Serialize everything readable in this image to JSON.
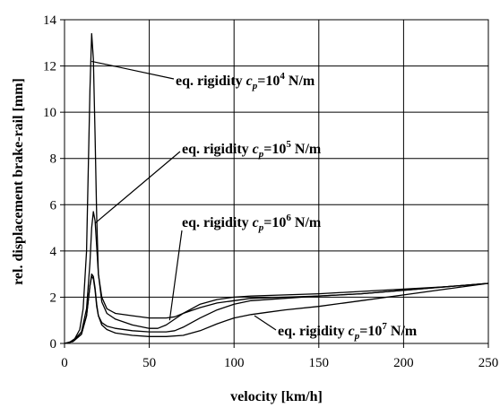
{
  "chart_data": {
    "type": "line",
    "title": "",
    "xlabel": "velocity [km/h]",
    "ylabel": "rel. displacement brake-rail [mm]",
    "xlim": [
      0,
      250
    ],
    "ylim": [
      0,
      14
    ],
    "xticks": [
      "0",
      "50",
      "100",
      "150",
      "200",
      "250"
    ],
    "yticks": [
      "0",
      "2",
      "4",
      "6",
      "8",
      "10",
      "12",
      "14"
    ],
    "grid": true,
    "legend": "none",
    "line_color": "#000000",
    "series": [
      {
        "name": "eq. rigidity cp=10^4 N/m",
        "x": [
          0,
          3,
          6,
          9,
          11,
          13,
          14,
          15,
          16,
          17,
          18,
          19,
          20,
          22,
          25,
          30,
          40,
          50,
          55,
          60,
          65,
          70,
          80,
          90,
          100,
          110,
          130,
          150,
          175,
          200,
          225,
          250
        ],
        "y": [
          0,
          0.05,
          0.2,
          0.6,
          1.5,
          4,
          7.5,
          11,
          13.4,
          12.3,
          9,
          5.5,
          3,
          1.8,
          1.3,
          1.05,
          0.8,
          0.65,
          0.65,
          0.8,
          1.05,
          1.3,
          1.7,
          1.9,
          2.0,
          2.05,
          2.1,
          2.15,
          2.25,
          2.35,
          2.45,
          2.6
        ]
      },
      {
        "name": "eq. rigidity cp=10^5 N/m",
        "x": [
          0,
          5,
          10,
          13,
          15,
          16,
          17,
          18,
          19,
          20,
          22,
          25,
          30,
          40,
          50,
          60,
          65,
          70,
          80,
          90,
          100,
          110,
          130,
          150,
          175,
          200,
          225,
          250
        ],
        "y": [
          0,
          0.1,
          0.5,
          1.5,
          3.5,
          5.0,
          5.7,
          5.3,
          4.2,
          3.0,
          2.0,
          1.5,
          1.3,
          1.2,
          1.1,
          1.1,
          1.15,
          1.3,
          1.55,
          1.75,
          1.85,
          1.95,
          2.0,
          2.05,
          2.15,
          2.3,
          2.45,
          2.6
        ]
      },
      {
        "name": "eq. rigidity cp=10^6 N/m",
        "x": [
          0,
          5,
          10,
          13,
          15,
          16,
          17,
          18,
          19,
          20,
          22,
          25,
          30,
          40,
          50,
          60,
          65,
          70,
          80,
          90,
          100,
          110,
          130,
          150,
          175,
          200,
          225,
          250
        ],
        "y": [
          0,
          0.08,
          0.4,
          1.2,
          2.5,
          2.9,
          2.8,
          2.3,
          1.6,
          1.2,
          0.9,
          0.75,
          0.65,
          0.55,
          0.5,
          0.5,
          0.55,
          0.7,
          1.1,
          1.45,
          1.7,
          1.85,
          1.95,
          2.05,
          2.15,
          2.3,
          2.45,
          2.6
        ]
      },
      {
        "name": "eq. rigidity cp=10^7 N/m",
        "x": [
          0,
          5,
          10,
          13,
          15,
          16,
          17,
          18,
          19,
          20,
          22,
          25,
          30,
          40,
          50,
          60,
          70,
          80,
          90,
          100,
          110,
          120,
          130,
          150,
          175,
          200,
          225,
          250
        ],
        "y": [
          0,
          0.08,
          0.4,
          1.2,
          2.5,
          3.0,
          2.9,
          2.4,
          1.7,
          1.2,
          0.8,
          0.6,
          0.45,
          0.35,
          0.3,
          0.3,
          0.35,
          0.55,
          0.85,
          1.1,
          1.25,
          1.35,
          1.45,
          1.6,
          1.85,
          2.1,
          2.35,
          2.6
        ]
      }
    ],
    "annotations": [
      {
        "text_prefix": "eq. rigidity ",
        "var": "c",
        "sub": "p",
        "eq": "=10",
        "exp": "4",
        "suffix": " N/m",
        "target": [
          16,
          12.2
        ]
      },
      {
        "text_prefix": "eq. rigidity ",
        "var": "c",
        "sub": "p",
        "eq": "=10",
        "exp": "5",
        "suffix": " N/m",
        "target": [
          18,
          5.2
        ]
      },
      {
        "text_prefix": "eq. rigidity ",
        "var": "c",
        "sub": "p",
        "eq": "=10",
        "exp": "6",
        "suffix": " N/m",
        "target": [
          62,
          1.0
        ]
      },
      {
        "text_prefix": "eq. rigidity ",
        "var": "c",
        "sub": "p",
        "eq": "=10",
        "exp": "7",
        "suffix": " N/m",
        "target": [
          112,
          1.2
        ]
      }
    ]
  }
}
